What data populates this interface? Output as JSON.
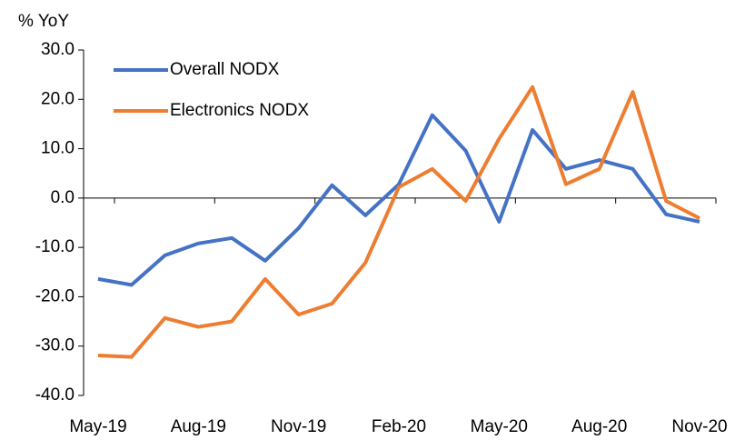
{
  "chart_data": {
    "type": "line",
    "y_label": "% YoY",
    "categories": [
      "May-19",
      null,
      null,
      "Aug-19",
      null,
      null,
      "Nov-19",
      null,
      null,
      "Feb-20",
      null,
      null,
      "May-20",
      null,
      null,
      "Aug-20",
      null,
      null,
      "Nov-20"
    ],
    "series": [
      {
        "name": "Overall NODX",
        "color": "#4472c4",
        "values": [
          -16.4,
          -17.6,
          -11.6,
          -9.2,
          -8.1,
          -12.7,
          -6.1,
          2.6,
          -3.5,
          2.8,
          16.8,
          9.6,
          -4.8,
          13.8,
          5.9,
          7.7,
          5.9,
          -3.3,
          -4.8
        ]
      },
      {
        "name": "Electronics NODX",
        "color": "#ed7d31",
        "values": [
          -31.9,
          -32.2,
          -24.3,
          -26.1,
          -25.0,
          -16.4,
          -23.6,
          -21.4,
          -13.1,
          2.2,
          5.9,
          -0.6,
          12.0,
          22.5,
          2.8,
          5.9,
          21.5,
          -0.6,
          -4.1
        ]
      }
    ],
    "ylim": [
      -40,
      30
    ],
    "yticks": [
      {
        "value": -40,
        "label": "-40.0"
      },
      {
        "value": -30,
        "label": "-30.0"
      },
      {
        "value": -20,
        "label": "-20.0"
      },
      {
        "value": -10,
        "label": "-10.0"
      },
      {
        "value": 0,
        "label": "0.0"
      },
      {
        "value": 10,
        "label": "10.0"
      },
      {
        "value": 20,
        "label": "20.0"
      },
      {
        "value": 30,
        "label": "30.0"
      }
    ],
    "legend": "upper left"
  }
}
